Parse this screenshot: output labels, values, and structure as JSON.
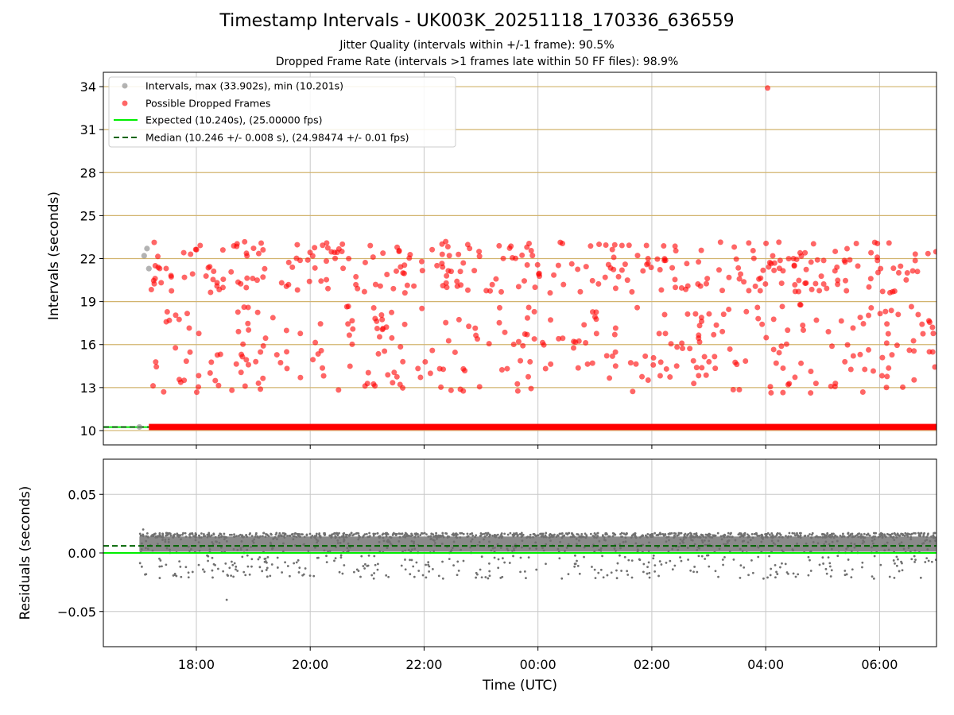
{
  "figure": {
    "title": "Timestamp Intervals - UK003K_20251118_170336_636559",
    "subtitle1": "Jitter Quality (intervals within +/-1 frame): 90.5%",
    "subtitle2": "Dropped Frame Rate (intervals >1 frames late within 50 FF files): 98.9%",
    "xlabel": "Time (UTC)"
  },
  "colors": {
    "intervals": "#808080",
    "dropped": "#ff0000",
    "expected": "#00ee00",
    "median": "#006400",
    "hgrid": "#d2b46e",
    "vgrid": "#c8c8c8",
    "residuals": "#707070"
  },
  "chart_data": [
    {
      "type": "scatter",
      "ylabel": "Intervals (seconds)",
      "xlim": [
        "16:22",
        "07:00"
      ],
      "ylim": [
        9.0,
        35.0
      ],
      "yticks": [
        10,
        13,
        16,
        19,
        22,
        25,
        28,
        31,
        34
      ],
      "grid": true,
      "legend_position": "top-left",
      "legend": [
        "Intervals, max (33.902s), min (10.201s)",
        "Possible Dropped Frames",
        "Expected (10.240s), (25.00000 fps)",
        "Median (10.246 +/- 0.008 s), (24.98474 +/- 0.01 fps)"
      ],
      "series": [
        {
          "name": "Intervals, max (33.902s), min (10.201s)",
          "kind": "scatter",
          "x": [
            "17:00",
            "17:05",
            "17:08",
            "17:10"
          ],
          "y": [
            10.25,
            22.2,
            22.7,
            21.3
          ]
        },
        {
          "name": "Possible Dropped Frames",
          "kind": "scatter",
          "baseline_band": [
            10.2,
            10.3
          ],
          "max_point": {
            "x": "04:02",
            "y": 33.902
          }
        },
        {
          "name": "Expected (10.240s), (25.00000 fps)",
          "kind": "hline",
          "y": 10.24
        },
        {
          "name": "Median (10.246 +/- 0.008 s), (24.98474 +/- 0.01 fps)",
          "kind": "hline_dashed",
          "y": 10.246
        }
      ]
    },
    {
      "type": "scatter",
      "ylabel": "Residuals (seconds)",
      "xlabel": "Time (UTC)",
      "xlim": [
        "16:22",
        "07:00"
      ],
      "ylim": [
        -0.08,
        0.08
      ],
      "yticks": [
        0.05,
        0.0,
        -0.05
      ],
      "ytick_labels": [
        "0.05",
        "0.00",
        "−0.05"
      ],
      "xticks": [
        "18:00",
        "20:00",
        "22:00",
        "00:00",
        "02:00",
        "04:00",
        "06:00"
      ],
      "grid": true,
      "series": [
        {
          "name": "Residuals",
          "kind": "scatter",
          "x_range": [
            "17:00",
            "07:00"
          ],
          "main_band": [
            0.0,
            0.016
          ],
          "min": -0.04,
          "max": 0.02
        },
        {
          "name": "Expected (10.240s), (25.00000 fps)",
          "kind": "hline",
          "y": 0.0
        },
        {
          "name": "Median (10.246 +/- 0.008 s), (24.98474 +/- 0.01 fps)",
          "kind": "hline_dashed",
          "y": 0.006
        }
      ]
    }
  ]
}
